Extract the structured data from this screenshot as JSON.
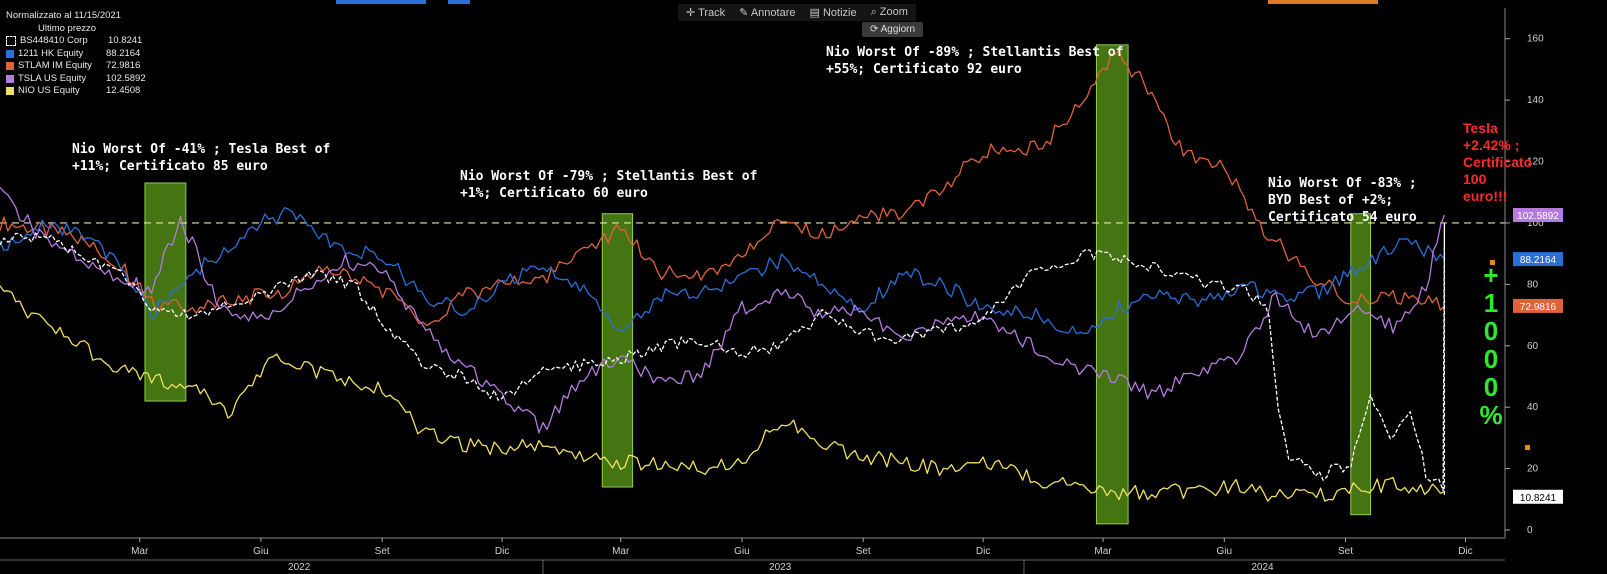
{
  "toolbar": {
    "track": "Track",
    "annotate": "Annotare",
    "news": "Notizie",
    "zoom": "Zoom",
    "refresh": "Aggiorn"
  },
  "legend": {
    "header": "Normalizzato al 11/15/2021",
    "subheader": "Ultimo prezzo",
    "items": [
      {
        "name": "BS448410 Corp",
        "value": "10.8241",
        "color": "#ffffff"
      },
      {
        "name": "1211 HK Equity",
        "value": "88.2164",
        "color": "#2a6fd6"
      },
      {
        "name": "STLAM IM Equity",
        "value": "72.9816",
        "color": "#e0613a"
      },
      {
        "name": "TSLA US Equity",
        "value": "102.5892",
        "color": "#b57ae0"
      },
      {
        "name": "NIO US Equity",
        "value": "12.4508",
        "color": "#f0e060"
      }
    ]
  },
  "annotations": {
    "a1": [
      "Nio Worst Of -41% ; Tesla Best of",
      "+11%; Certificato 85 euro"
    ],
    "a2": [
      "Nio Worst Of -79% ; Stellantis Best of",
      "+1%; Certificato 60 euro"
    ],
    "a3": [
      "Nio Worst Of -89% ; Stellantis Best of",
      "+55%; Certificato 92 euro"
    ],
    "a4": [
      "Nio Worst Of -83% ;",
      "BYD Best of +2%;",
      "Certificato 54 euro"
    ],
    "a5": [
      "Tesla",
      "+2.42% ;",
      "Certificato",
      "100",
      "euro!!!"
    ],
    "vertical": [
      "+",
      "1",
      "0",
      "0",
      "0",
      "%"
    ]
  },
  "chart_data": {
    "type": "line",
    "ylim": [
      0,
      170
    ],
    "yticks": [
      0,
      20,
      40,
      60,
      80,
      100,
      120,
      140,
      160
    ],
    "x_range": [
      "2021-11-15",
      "2024-12-31"
    ],
    "xticks": [
      {
        "label": "Mar",
        "date": "2022-03-01"
      },
      {
        "label": "Giu",
        "date": "2022-06-01"
      },
      {
        "label": "Set",
        "date": "2022-09-01"
      },
      {
        "label": "Dic",
        "date": "2022-12-01"
      },
      {
        "label": "Mar",
        "date": "2023-03-01"
      },
      {
        "label": "Giu",
        "date": "2023-06-01"
      },
      {
        "label": "Set",
        "date": "2023-09-01"
      },
      {
        "label": "Dic",
        "date": "2023-12-01"
      },
      {
        "label": "Mar",
        "date": "2024-03-01"
      },
      {
        "label": "Giu",
        "date": "2024-06-01"
      },
      {
        "label": "Set",
        "date": "2024-09-01"
      },
      {
        "label": "Dic",
        "date": "2024-12-01"
      }
    ],
    "years": [
      {
        "label": "2022",
        "date": "2022-06-30"
      },
      {
        "label": "2023",
        "date": "2023-06-30"
      },
      {
        "label": "2024",
        "date": "2024-06-30"
      }
    ],
    "reference_line": 100,
    "highlight_bands": [
      {
        "from": "2022-03-05",
        "to": "2022-04-05",
        "ymin": 42,
        "ymax": 113
      },
      {
        "from": "2023-02-15",
        "to": "2023-03-10",
        "ymin": 14,
        "ymax": 103
      },
      {
        "from": "2024-02-25",
        "to": "2024-03-20",
        "ymin": 2,
        "ymax": 158
      },
      {
        "from": "2024-09-05",
        "to": "2024-09-20",
        "ymin": 5,
        "ymax": 103
      }
    ],
    "last_value_tags": [
      {
        "value": 102.5892,
        "label": "102.5892",
        "color": "#b57ae0"
      },
      {
        "value": 88.2164,
        "label": "88.2164",
        "color": "#2a6fd6"
      },
      {
        "value": 72.9816,
        "label": "72.9816",
        "color": "#e0613a"
      },
      {
        "value": 10.8241,
        "label": "10.8241",
        "color": "#ffffff"
      }
    ],
    "series": [
      {
        "name": "STLAM IM Equity",
        "color": "#e0613a",
        "dash": false,
        "points": [
          [
            "2021-11-15",
            100
          ],
          [
            "2022-01-10",
            96
          ],
          [
            "2022-02-15",
            86
          ],
          [
            "2022-03-10",
            74
          ],
          [
            "2022-04-10",
            72
          ],
          [
            "2022-05-15",
            75
          ],
          [
            "2022-06-20",
            78
          ],
          [
            "2022-07-15",
            85
          ],
          [
            "2022-08-15",
            82
          ],
          [
            "2022-09-10",
            76
          ],
          [
            "2022-10-05",
            66
          ],
          [
            "2022-11-01",
            76
          ],
          [
            "2022-12-01",
            80
          ],
          [
            "2023-01-01",
            82
          ],
          [
            "2023-02-01",
            90
          ],
          [
            "2023-03-01",
            98
          ],
          [
            "2023-04-01",
            84
          ],
          [
            "2023-05-01",
            82
          ],
          [
            "2023-06-01",
            90
          ],
          [
            "2023-07-01",
            100
          ],
          [
            "2023-08-01",
            96
          ],
          [
            "2023-09-01",
            103
          ],
          [
            "2023-10-01",
            102
          ],
          [
            "2023-11-01",
            112
          ],
          [
            "2023-12-01",
            123
          ],
          [
            "2024-01-15",
            125
          ],
          [
            "2024-02-15",
            140
          ],
          [
            "2024-03-10",
            155
          ],
          [
            "2024-04-01",
            146
          ],
          [
            "2024-05-01",
            122
          ],
          [
            "2024-06-01",
            118
          ],
          [
            "2024-07-01",
            98
          ],
          [
            "2024-08-01",
            84
          ],
          [
            "2024-09-01",
            76
          ],
          [
            "2024-10-01",
            76
          ],
          [
            "2024-11-15",
            72.98
          ]
        ]
      },
      {
        "name": "1211 HK Equity",
        "color": "#2a6fd6",
        "dash": false,
        "points": [
          [
            "2021-11-15",
            92
          ],
          [
            "2021-12-20",
            100
          ],
          [
            "2022-01-20",
            95
          ],
          [
            "2022-02-15",
            86
          ],
          [
            "2022-03-10",
            70
          ],
          [
            "2022-04-10",
            84
          ],
          [
            "2022-05-10",
            92
          ],
          [
            "2022-06-01",
            100
          ],
          [
            "2022-06-25",
            104
          ],
          [
            "2022-07-15",
            95
          ],
          [
            "2022-08-10",
            90
          ],
          [
            "2022-09-01",
            90
          ],
          [
            "2022-10-01",
            76
          ],
          [
            "2022-11-01",
            72
          ],
          [
            "2022-12-01",
            80
          ],
          [
            "2023-01-01",
            86
          ],
          [
            "2023-02-01",
            78
          ],
          [
            "2023-03-01",
            66
          ],
          [
            "2023-04-01",
            76
          ],
          [
            "2023-05-01",
            78
          ],
          [
            "2023-06-01",
            82
          ],
          [
            "2023-07-01",
            88
          ],
          [
            "2023-08-01",
            80
          ],
          [
            "2023-09-01",
            72
          ],
          [
            "2023-10-01",
            84
          ],
          [
            "2023-11-01",
            80
          ],
          [
            "2023-12-01",
            72
          ],
          [
            "2024-01-10",
            70
          ],
          [
            "2024-02-10",
            64
          ],
          [
            "2024-03-10",
            72
          ],
          [
            "2024-04-10",
            76
          ],
          [
            "2024-05-15",
            74
          ],
          [
            "2024-06-15",
            80
          ],
          [
            "2024-07-15",
            76
          ],
          [
            "2024-08-15",
            78
          ],
          [
            "2024-09-15",
            86
          ],
          [
            "2024-10-15",
            94
          ],
          [
            "2024-11-15",
            88.22
          ]
        ]
      },
      {
        "name": "TSLA US Equity",
        "color": "#b57ae0",
        "dash": false,
        "points": [
          [
            "2021-11-15",
            110
          ],
          [
            "2021-12-15",
            96
          ],
          [
            "2022-01-15",
            88
          ],
          [
            "2022-02-15",
            82
          ],
          [
            "2022-03-10",
            78
          ],
          [
            "2022-04-01",
            102
          ],
          [
            "2022-05-01",
            72
          ],
          [
            "2022-06-01",
            68
          ],
          [
            "2022-07-01",
            78
          ],
          [
            "2022-08-01",
            88
          ],
          [
            "2022-09-01",
            84
          ],
          [
            "2022-10-01",
            66
          ],
          [
            "2022-11-01",
            54
          ],
          [
            "2022-12-01",
            44
          ],
          [
            "2023-01-01",
            33
          ],
          [
            "2023-02-01",
            50
          ],
          [
            "2023-03-01",
            56
          ],
          [
            "2023-04-01",
            48
          ],
          [
            "2023-05-01",
            50
          ],
          [
            "2023-06-01",
            72
          ],
          [
            "2023-07-01",
            78
          ],
          [
            "2023-08-01",
            70
          ],
          [
            "2023-09-01",
            72
          ],
          [
            "2023-10-01",
            62
          ],
          [
            "2023-11-01",
            68
          ],
          [
            "2023-12-01",
            70
          ],
          [
            "2024-01-15",
            58
          ],
          [
            "2024-02-15",
            52
          ],
          [
            "2024-03-10",
            50
          ],
          [
            "2024-04-10",
            44
          ],
          [
            "2024-05-10",
            52
          ],
          [
            "2024-06-10",
            55
          ],
          [
            "2024-07-10",
            76
          ],
          [
            "2024-08-10",
            62
          ],
          [
            "2024-09-10",
            72
          ],
          [
            "2024-10-10",
            66
          ],
          [
            "2024-11-01",
            80
          ],
          [
            "2024-11-15",
            102.59
          ]
        ]
      },
      {
        "name": "BS448410 Corp",
        "color": "#ffffff",
        "dash": true,
        "points": [
          [
            "2021-11-15",
            94
          ],
          [
            "2021-12-15",
            96
          ],
          [
            "2022-01-15",
            90
          ],
          [
            "2022-02-15",
            84
          ],
          [
            "2022-03-10",
            72
          ],
          [
            "2022-04-10",
            70
          ],
          [
            "2022-05-10",
            74
          ],
          [
            "2022-06-10",
            78
          ],
          [
            "2022-07-10",
            84
          ],
          [
            "2022-08-10",
            80
          ],
          [
            "2022-09-01",
            68
          ],
          [
            "2022-10-01",
            54
          ],
          [
            "2022-11-01",
            50
          ],
          [
            "2022-12-01",
            42
          ],
          [
            "2023-01-01",
            52
          ],
          [
            "2023-02-01",
            54
          ],
          [
            "2023-03-01",
            56
          ],
          [
            "2023-04-01",
            60
          ],
          [
            "2023-05-01",
            62
          ],
          [
            "2023-06-01",
            58
          ],
          [
            "2023-07-01",
            60
          ],
          [
            "2023-08-01",
            70
          ],
          [
            "2023-09-01",
            64
          ],
          [
            "2023-10-01",
            62
          ],
          [
            "2023-11-01",
            66
          ],
          [
            "2023-12-01",
            68
          ],
          [
            "2024-01-01",
            82
          ],
          [
            "2024-01-20",
            86
          ],
          [
            "2024-02-20",
            90
          ],
          [
            "2024-03-20",
            88
          ],
          [
            "2024-04-20",
            84
          ],
          [
            "2024-05-20",
            80
          ],
          [
            "2024-06-20",
            78
          ],
          [
            "2024-07-05",
            70
          ],
          [
            "2024-07-12",
            40
          ],
          [
            "2024-07-20",
            24
          ],
          [
            "2024-08-15",
            18
          ],
          [
            "2024-09-05",
            22
          ],
          [
            "2024-09-20",
            45
          ],
          [
            "2024-10-05",
            30
          ],
          [
            "2024-10-20",
            40
          ],
          [
            "2024-11-01",
            18
          ],
          [
            "2024-11-14",
            14
          ],
          [
            "2024-11-15",
            100
          ],
          [
            "2024-11-15",
            10.82
          ]
        ]
      },
      {
        "name": "NIO US Equity",
        "color": "#f0e060",
        "dash": false,
        "points": [
          [
            "2021-11-15",
            78
          ],
          [
            "2021-12-15",
            68
          ],
          [
            "2022-01-15",
            60
          ],
          [
            "2022-02-15",
            52
          ],
          [
            "2022-03-10",
            50
          ],
          [
            "2022-04-10",
            46
          ],
          [
            "2022-05-10",
            38
          ],
          [
            "2022-06-10",
            58
          ],
          [
            "2022-07-10",
            52
          ],
          [
            "2022-08-10",
            48
          ],
          [
            "2022-09-01",
            46
          ],
          [
            "2022-10-01",
            32
          ],
          [
            "2022-11-01",
            28
          ],
          [
            "2022-12-01",
            26
          ],
          [
            "2023-01-01",
            28
          ],
          [
            "2023-02-01",
            24
          ],
          [
            "2023-03-01",
            22
          ],
          [
            "2023-04-01",
            22
          ],
          [
            "2023-05-01",
            20
          ],
          [
            "2023-06-01",
            22
          ],
          [
            "2023-07-01",
            36
          ],
          [
            "2023-08-01",
            28
          ],
          [
            "2023-09-01",
            24
          ],
          [
            "2023-10-01",
            22
          ],
          [
            "2023-11-01",
            20
          ],
          [
            "2023-12-01",
            22
          ],
          [
            "2024-01-15",
            16
          ],
          [
            "2024-02-15",
            14
          ],
          [
            "2024-03-10",
            12
          ],
          [
            "2024-04-10",
            12
          ],
          [
            "2024-05-10",
            13
          ],
          [
            "2024-06-10",
            14
          ],
          [
            "2024-07-10",
            11
          ],
          [
            "2024-08-10",
            11
          ],
          [
            "2024-09-10",
            14
          ],
          [
            "2024-10-10",
            15
          ],
          [
            "2024-11-15",
            12.45
          ]
        ]
      }
    ]
  }
}
